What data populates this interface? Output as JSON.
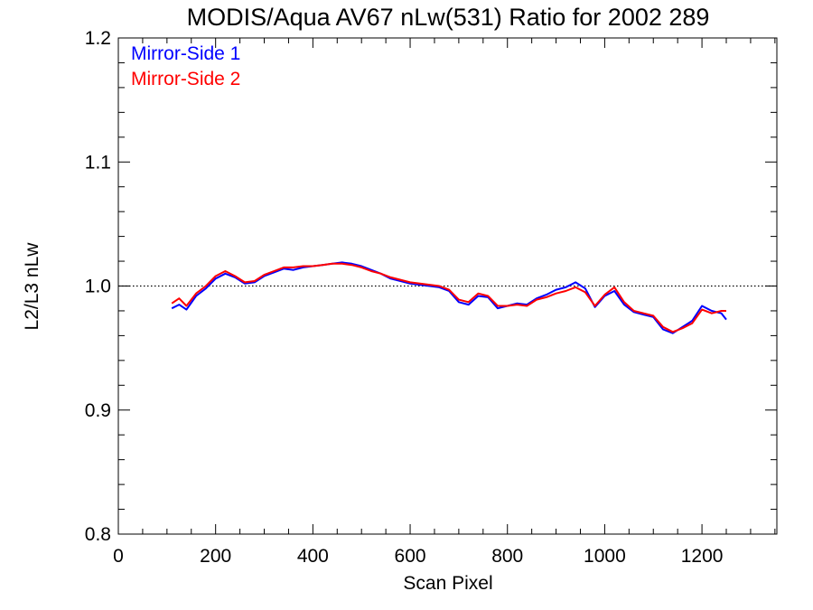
{
  "chart_data": {
    "type": "line",
    "title": "MODIS/Aqua AV67 nLw(531) Ratio for 2002 289",
    "xlabel": "Scan Pixel",
    "ylabel": "L2/L3 nLw",
    "xlim": [
      0,
      1354
    ],
    "ylim": [
      0.8,
      1.2
    ],
    "xticks": [
      0,
      200,
      400,
      600,
      800,
      1000,
      1200
    ],
    "yticks": [
      0.8,
      0.9,
      1.0,
      1.1,
      1.2
    ],
    "xtick_labels": [
      "0",
      "200",
      "400",
      "600",
      "800",
      "1000",
      "1200"
    ],
    "ytick_labels": [
      "0.8",
      "0.9",
      "1.0",
      "1.1",
      "1.2"
    ],
    "reference_line": {
      "y": 1.0,
      "style": "dotted",
      "color": "#000000"
    },
    "legend": {
      "position": "top-left"
    },
    "x": [
      110,
      125,
      140,
      160,
      180,
      200,
      220,
      240,
      260,
      280,
      300,
      320,
      340,
      360,
      380,
      400,
      420,
      440,
      460,
      480,
      500,
      520,
      540,
      560,
      580,
      600,
      620,
      640,
      660,
      680,
      700,
      720,
      740,
      760,
      780,
      800,
      820,
      840,
      860,
      880,
      900,
      920,
      940,
      960,
      980,
      1000,
      1020,
      1040,
      1060,
      1080,
      1100,
      1120,
      1140,
      1160,
      1180,
      1200,
      1220,
      1240,
      1250
    ],
    "series": [
      {
        "name": "Mirror-Side 1",
        "color": "#0000ff",
        "values": [
          0.982,
          0.985,
          0.981,
          0.992,
          0.998,
          1.006,
          1.01,
          1.007,
          1.002,
          1.003,
          1.008,
          1.011,
          1.014,
          1.013,
          1.015,
          1.016,
          1.017,
          1.018,
          1.019,
          1.018,
          1.016,
          1.013,
          1.01,
          1.006,
          1.004,
          1.002,
          1.001,
          1.0,
          0.999,
          0.996,
          0.987,
          0.985,
          0.992,
          0.991,
          0.982,
          0.984,
          0.986,
          0.985,
          0.99,
          0.993,
          0.997,
          0.999,
          1.003,
          0.998,
          0.983,
          0.992,
          0.996,
          0.985,
          0.979,
          0.977,
          0.975,
          0.965,
          0.962,
          0.967,
          0.972,
          0.984,
          0.98,
          0.978,
          0.973
        ]
      },
      {
        "name": "Mirror-Side 2",
        "color": "#ff0000",
        "values": [
          0.986,
          0.99,
          0.984,
          0.994,
          1.0,
          1.008,
          1.012,
          1.008,
          1.003,
          1.004,
          1.009,
          1.012,
          1.015,
          1.015,
          1.016,
          1.016,
          1.017,
          1.018,
          1.018,
          1.017,
          1.015,
          1.012,
          1.01,
          1.007,
          1.005,
          1.003,
          1.002,
          1.001,
          1.0,
          0.997,
          0.989,
          0.987,
          0.994,
          0.992,
          0.984,
          0.984,
          0.985,
          0.984,
          0.989,
          0.991,
          0.994,
          0.996,
          0.999,
          0.995,
          0.984,
          0.993,
          0.999,
          0.987,
          0.98,
          0.978,
          0.976,
          0.967,
          0.963,
          0.966,
          0.97,
          0.981,
          0.978,
          0.98,
          0.98
        ]
      }
    ]
  }
}
